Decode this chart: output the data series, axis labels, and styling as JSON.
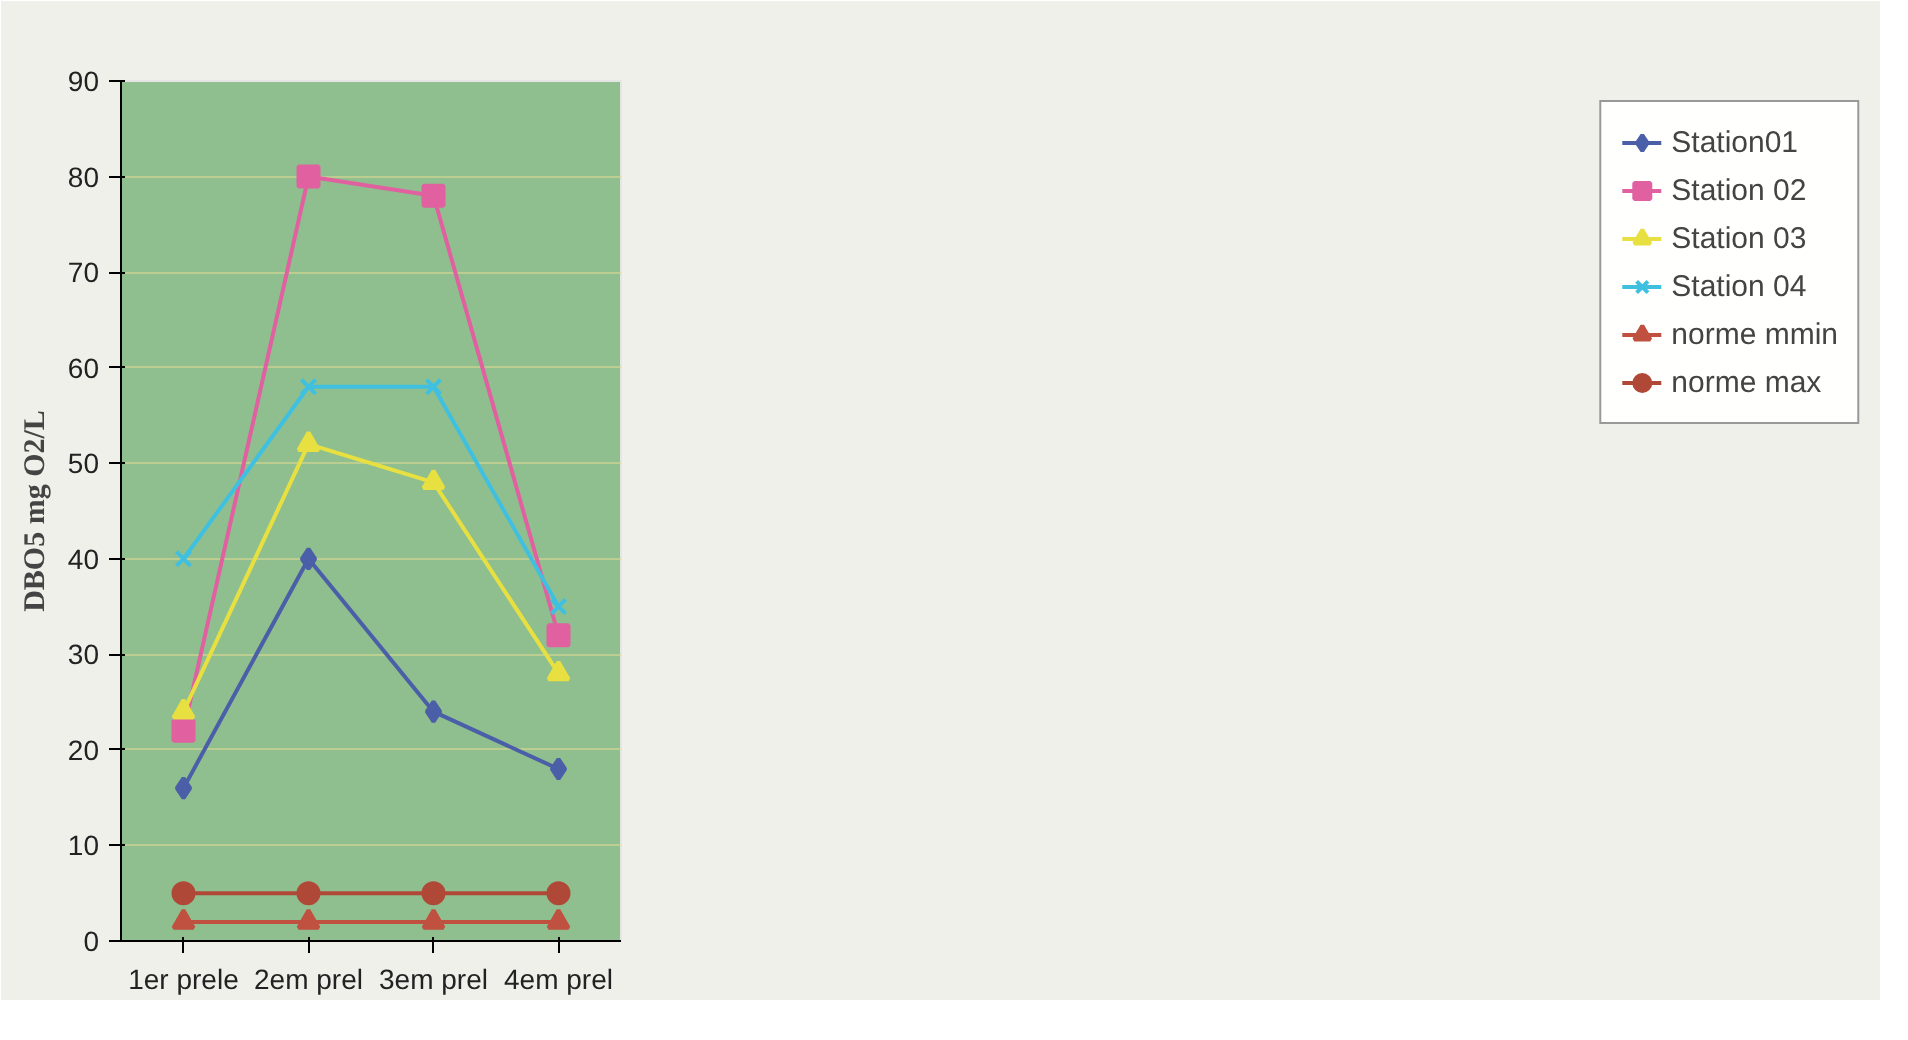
{
  "chart_data": {
    "type": "line",
    "ylabel": "DBO5 mg O2/L",
    "categories": [
      "1er prele",
      "2em prel",
      "3em prel",
      "4em prel"
    ],
    "series": [
      {
        "name": "Station01",
        "color": "#4a5fa8",
        "marker": "diamond",
        "values": [
          16,
          40,
          24,
          18
        ]
      },
      {
        "name": "Station 02",
        "color": "#e060a0",
        "marker": "square",
        "values": [
          22,
          80,
          78,
          32
        ]
      },
      {
        "name": "Station 03",
        "color": "#e8e040",
        "marker": "triangle",
        "values": [
          24,
          52,
          48,
          28
        ]
      },
      {
        "name": "Station 04",
        "color": "#40c0e0",
        "marker": "cross",
        "values": [
          40,
          58,
          58,
          35
        ]
      },
      {
        "name": "norme mmin",
        "color": "#c05040",
        "marker": "triangle",
        "values": [
          2,
          2,
          2,
          2
        ]
      },
      {
        "name": "norme max",
        "color": "#b04838",
        "marker": "circle",
        "values": [
          5,
          5,
          5,
          5
        ]
      }
    ],
    "ylim": [
      0,
      90
    ],
    "yticks": [
      0,
      10,
      20,
      30,
      40,
      50,
      60,
      70,
      80,
      90
    ],
    "grid": "y",
    "legend": "right"
  }
}
